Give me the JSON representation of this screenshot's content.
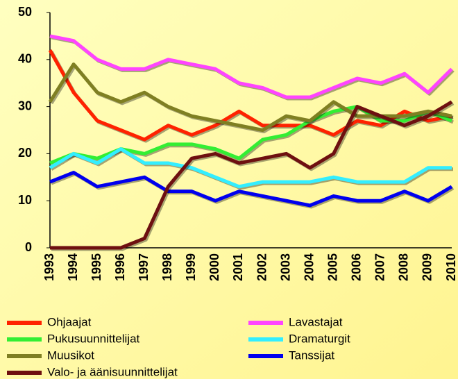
{
  "chart_data": {
    "type": "line",
    "categories": [
      "1993",
      "1994",
      "1995",
      "1996",
      "1997",
      "1998",
      "1999",
      "2000",
      "2001",
      "2002",
      "2003",
      "2004",
      "2005",
      "2006",
      "2007",
      "2008",
      "2009",
      "2010"
    ],
    "series": [
      {
        "name": "Ohjaajat",
        "color": "#ff2200",
        "values": [
          42,
          33,
          27,
          25,
          23,
          26,
          24,
          26,
          29,
          26,
          26,
          26,
          24,
          27,
          26,
          29,
          27,
          28
        ]
      },
      {
        "name": "Lavastajat",
        "color": "#ff44ff",
        "values": [
          45,
          44,
          40,
          38,
          38,
          40,
          39,
          38,
          35,
          34,
          32,
          32,
          34,
          36,
          35,
          37,
          33,
          38
        ]
      },
      {
        "name": "Pukusuunnittelijat",
        "color": "#33ee33",
        "values": [
          18,
          20,
          19,
          21,
          20,
          22,
          22,
          21,
          19,
          23,
          24,
          27,
          29,
          30,
          27,
          27,
          29,
          27
        ]
      },
      {
        "name": "Dramaturgit",
        "color": "#33eeff",
        "values": [
          17,
          20,
          18,
          21,
          18,
          18,
          17,
          15,
          13,
          14,
          14,
          14,
          15,
          14,
          14,
          14,
          17,
          17
        ]
      },
      {
        "name": "Muusikot",
        "color": "#7f7f22",
        "values": [
          31,
          39,
          33,
          31,
          33,
          30,
          28,
          27,
          26,
          25,
          28,
          27,
          31,
          28,
          28,
          28,
          29,
          28
        ]
      },
      {
        "name": "Tanssijat",
        "color": "#0000ee",
        "values": [
          14,
          16,
          13,
          14,
          15,
          12,
          12,
          10,
          12,
          11,
          10,
          9,
          11,
          10,
          10,
          12,
          10,
          13
        ]
      },
      {
        "name": "Valo- ja äänisuunnittelijat",
        "color": "#6e1010",
        "values": [
          0,
          0,
          0,
          0,
          2,
          13,
          19,
          20,
          18,
          19,
          20,
          17,
          20,
          30,
          28,
          26,
          28,
          31
        ]
      }
    ],
    "ylim": [
      0,
      50
    ],
    "yticks": [
      0,
      10,
      20,
      30,
      40,
      50
    ]
  }
}
